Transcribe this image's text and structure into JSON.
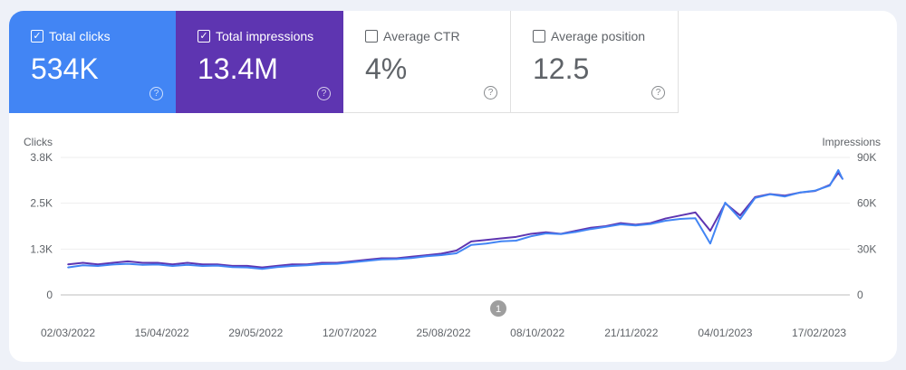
{
  "metrics": [
    {
      "label": "Total clicks",
      "value": "534K",
      "checked": true,
      "color": "#4285f4"
    },
    {
      "label": "Total impressions",
      "value": "13.4M",
      "checked": true,
      "color": "#5e35b1"
    },
    {
      "label": "Average CTR",
      "value": "4%",
      "checked": false
    },
    {
      "label": "Average position",
      "value": "12.5",
      "checked": false
    }
  ],
  "chart_data": {
    "type": "line",
    "ylabel_left": "Clicks",
    "ylabel_right": "Impressions",
    "left_ticks": [
      "0",
      "1.3K",
      "2.5K",
      "3.8K"
    ],
    "left_range": [
      0,
      3.8
    ],
    "right_ticks": [
      "0",
      "30K",
      "60K",
      "90K"
    ],
    "right_range": [
      0,
      90
    ],
    "x_ticks": [
      "02/03/2022",
      "15/04/2022",
      "29/05/2022",
      "12/07/2022",
      "25/08/2022",
      "08/10/2022",
      "21/11/2022",
      "04/01/2023",
      "17/02/2023"
    ],
    "annotation": "1",
    "x": [
      "02/03/2022",
      "09/03/2022",
      "16/03/2022",
      "23/03/2022",
      "30/03/2022",
      "06/04/2022",
      "13/04/2022",
      "20/04/2022",
      "27/04/2022",
      "04/05/2022",
      "11/05/2022",
      "18/05/2022",
      "25/05/2022",
      "01/06/2022",
      "08/06/2022",
      "15/06/2022",
      "22/06/2022",
      "29/06/2022",
      "06/07/2022",
      "13/07/2022",
      "20/07/2022",
      "27/07/2022",
      "03/08/2022",
      "10/08/2022",
      "17/08/2022",
      "24/08/2022",
      "31/08/2022",
      "07/09/2022",
      "14/09/2022",
      "21/09/2022",
      "28/09/2022",
      "05/10/2022",
      "12/10/2022",
      "19/10/2022",
      "26/10/2022",
      "02/11/2022",
      "09/11/2022",
      "16/11/2022",
      "23/11/2022",
      "30/11/2022",
      "07/12/2022",
      "14/12/2022",
      "21/12/2022",
      "28/12/2022",
      "04/01/2023",
      "11/01/2023",
      "18/01/2023",
      "25/01/2023",
      "01/02/2023",
      "08/02/2023",
      "15/02/2023",
      "22/02/2023",
      "26/02/2023",
      "28/02/2023"
    ],
    "series": [
      {
        "name": "Clicks",
        "axis": "left",
        "color": "#4285f4",
        "values": [
          0.76,
          0.82,
          0.8,
          0.84,
          0.86,
          0.83,
          0.84,
          0.8,
          0.83,
          0.8,
          0.81,
          0.77,
          0.76,
          0.72,
          0.77,
          0.8,
          0.82,
          0.85,
          0.86,
          0.9,
          0.94,
          0.98,
          0.99,
          1.02,
          1.07,
          1.1,
          1.15,
          1.38,
          1.42,
          1.48,
          1.5,
          1.62,
          1.7,
          1.68,
          1.74,
          1.82,
          1.88,
          1.95,
          1.92,
          1.96,
          2.05,
          2.1,
          2.12,
          1.42,
          2.55,
          2.1,
          2.68,
          2.78,
          2.72,
          2.83,
          2.88,
          3.02,
          3.45,
          3.2
        ]
      },
      {
        "name": "Impressions",
        "axis": "right",
        "color": "#5e35b1",
        "values": [
          20,
          21,
          20,
          21,
          22,
          21,
          21,
          20,
          21,
          20,
          20,
          19,
          19,
          18,
          19,
          20,
          20,
          21,
          21,
          22,
          23,
          24,
          24,
          25,
          26,
          27,
          29,
          35,
          36,
          37,
          38,
          40,
          41,
          40,
          42,
          44,
          45,
          47,
          46,
          47,
          50,
          52,
          54,
          42,
          60,
          52,
          64,
          66,
          65,
          67,
          68,
          72,
          80,
          76
        ]
      }
    ]
  }
}
